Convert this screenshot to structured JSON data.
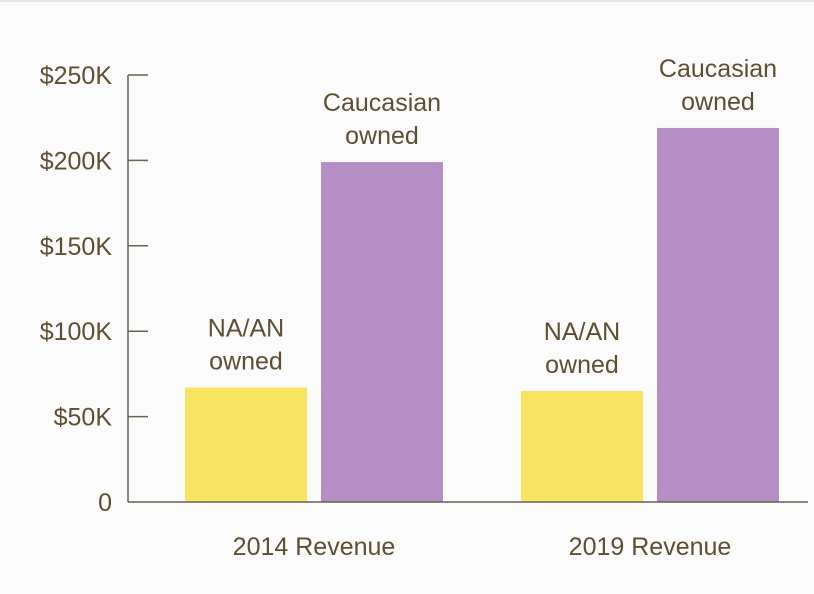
{
  "colors": {
    "background": "#fbfbfb",
    "text": "#5e4f33",
    "axis": "#6b6250"
  },
  "chart_data": {
    "type": "bar",
    "title": "",
    "xlabel": "",
    "ylabel": "",
    "categories": [
      "2014 Revenue",
      "2019 Revenue"
    ],
    "ylim": [
      0,
      250000
    ],
    "y_ticks": [
      {
        "value": 0,
        "label": "0"
      },
      {
        "value": 50000,
        "label": "$50K"
      },
      {
        "value": 100000,
        "label": "$100K"
      },
      {
        "value": 150000,
        "label": "$150K"
      },
      {
        "value": 200000,
        "label": "$200K"
      },
      {
        "value": 250000,
        "label": "$250K"
      }
    ],
    "grid": false,
    "legend": "none",
    "series": [
      {
        "values": [
          67000,
          65000
        ],
        "bar_label": [
          "NA/AN",
          "owned"
        ],
        "color": "#f9e462"
      },
      {
        "values": [
          199000,
          219000
        ],
        "bar_label": [
          "Caucasian",
          "owned"
        ],
        "color": "#b48ec5"
      }
    ]
  }
}
